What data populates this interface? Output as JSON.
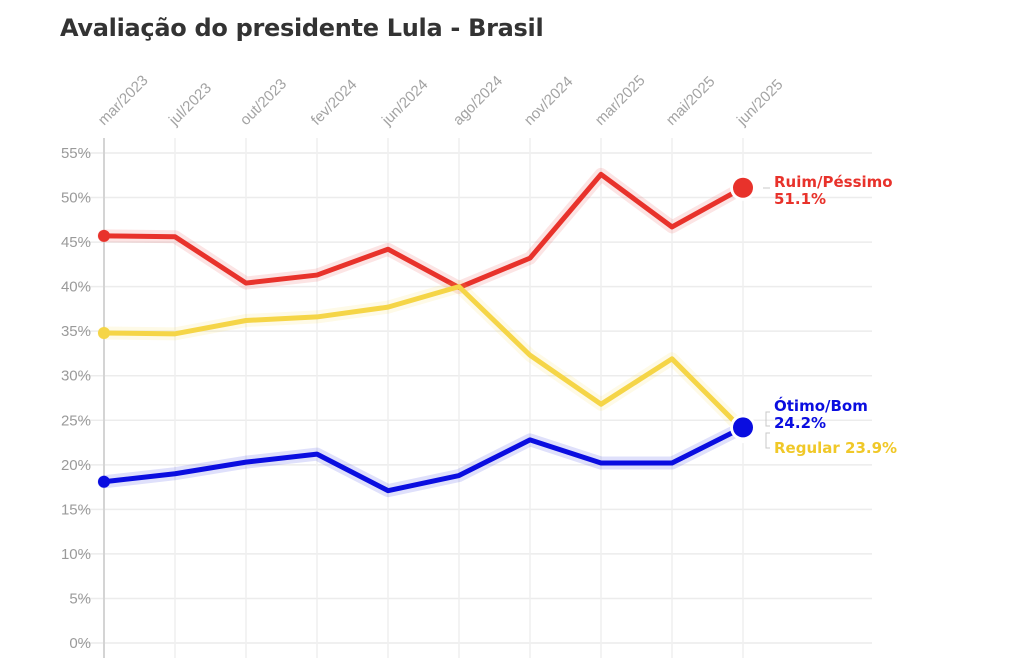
{
  "title": "Avaliação do presidente Lula - Brasil",
  "chart_data": {
    "type": "line",
    "title": "Avaliação do presidente Lula - Brasil",
    "x": [
      "mar/2023",
      "jul/2023",
      "out/2023",
      "fev/2024",
      "jun/2024",
      "ago/2024",
      "nov/2024",
      "mar/2025",
      "mai/2025",
      "jun/2025"
    ],
    "y_ticks": [
      "0%",
      "5%",
      "10%",
      "15%",
      "20%",
      "25%",
      "30%",
      "35%",
      "40%",
      "45%",
      "50%",
      "55%"
    ],
    "ylim": [
      0,
      55
    ],
    "grid": true,
    "series": [
      {
        "name": "Ruim/Péssimo",
        "color": "#e8322b",
        "value_label": "51.1%",
        "values": [
          45.7,
          45.6,
          40.4,
          41.3,
          44.2,
          39.9,
          43.2,
          52.6,
          46.7,
          51.1
        ]
      },
      {
        "name": "Regular",
        "color": "#f5d547",
        "value_label": "23.9%",
        "values": [
          34.8,
          34.7,
          36.2,
          36.6,
          37.7,
          40.0,
          32.3,
          26.8,
          31.9,
          23.9
        ]
      },
      {
        "name": "Ótimo/Bom",
        "color": "#0a0de0",
        "value_label": "24.2%",
        "values": [
          18.1,
          19.0,
          20.3,
          21.2,
          17.1,
          18.8,
          22.8,
          20.2,
          20.2,
          24.2
        ]
      }
    ]
  }
}
